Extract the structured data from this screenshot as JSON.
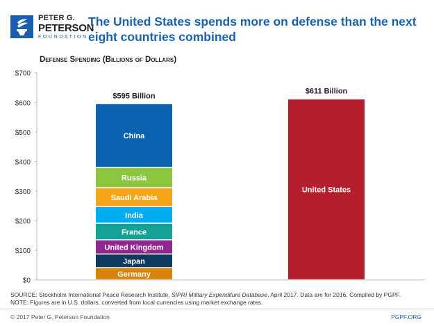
{
  "logo": {
    "line1": "PETER G.",
    "line2": "PETERSON",
    "line3": "FOUNDATION"
  },
  "title": "The United States spends more on defense than the next eight countries combined",
  "chart_data": {
    "type": "bar",
    "stacked": true,
    "title": "Defense Spending (Billions of Dollars)",
    "ylim": [
      0,
      700
    ],
    "yticks": [
      "$0",
      "$100",
      "$200",
      "$300",
      "$400",
      "$500",
      "$600",
      "$700"
    ],
    "grid": false,
    "bars": [
      {
        "total_label": "$595 Billion",
        "segments": [
          {
            "name": "Germany",
            "value": 41,
            "color": "#d9820a"
          },
          {
            "name": "Japan",
            "value": 46,
            "color": "#0d3a5e"
          },
          {
            "name": "United Kingdom",
            "value": 48,
            "color": "#92278f"
          },
          {
            "name": "France",
            "value": 56,
            "color": "#15a195"
          },
          {
            "name": "India",
            "value": 56,
            "color": "#00aeef"
          },
          {
            "name": "Saudi Arabia",
            "value": 64,
            "color": "#f9a51a"
          },
          {
            "name": "Russia",
            "value": 69,
            "color": "#8cc63f"
          },
          {
            "name": "China",
            "value": 215,
            "color": "#0a62b0"
          }
        ]
      },
      {
        "total_label": "$611 Billion",
        "segments": [
          {
            "name": "United States",
            "value": 611,
            "color": "#b41f2e"
          }
        ]
      }
    ]
  },
  "source_prefix": "SOURCE: Stockholm International Peace Research Institute, ",
  "source_italic": "SIPRI Military Expenditure Database",
  "source_suffix": ", April 2017. Data are for 2016. Compiled by PGPF.",
  "note": "NOTE: Figures are in U.S. dollars, converted from local currencies using market exchange rates.",
  "copyright": "© 2017 Peter G. Peterson Foundation",
  "url": "PGPF.ORG"
}
